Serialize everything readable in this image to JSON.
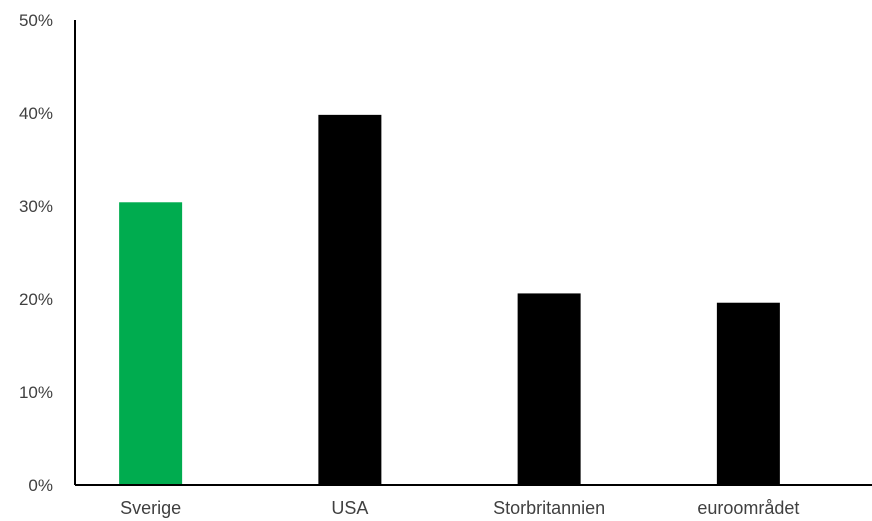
{
  "chart_data": {
    "type": "bar",
    "title": "",
    "xlabel": "",
    "ylabel": "",
    "categories": [
      "Sverige",
      "USA",
      "Storbritannien",
      "euroområdet"
    ],
    "values": [
      30.4,
      39.8,
      20.6,
      19.6
    ],
    "ylim": [
      0,
      50
    ],
    "yticks": [
      0,
      10,
      20,
      30,
      40,
      50
    ],
    "ytick_labels": [
      "0%",
      "10%",
      "20%",
      "30%",
      "40%",
      "50%"
    ],
    "colors": [
      "#00AC4F",
      "#000000",
      "#000000",
      "#000000"
    ],
    "grid": false,
    "legend": "none"
  }
}
